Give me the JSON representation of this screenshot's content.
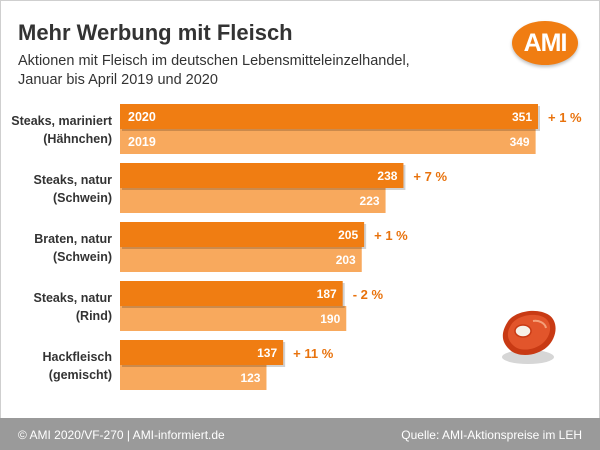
{
  "header": {
    "title": "Mehr Werbung mit Fleisch",
    "subtitle": "Aktionen mit Fleisch im deutschen Lebensmitteleinzelhandel, Januar bis April 2019 und 2020",
    "logo": "AMI"
  },
  "footer": {
    "left": "© AMI 2020/VF-270 | AMI-informiert.de",
    "right": "Quelle: AMI-Aktionspreise im LEH"
  },
  "colors": {
    "series_2020": "#f07d12",
    "series_2019": "#f8a95d",
    "accent_text": "#e8720c"
  },
  "icons": [
    "meat-steak-icon"
  ],
  "chart_data": {
    "type": "bar",
    "orientation": "horizontal",
    "categories": [
      [
        "Steaks, mariniert",
        "(Hähnchen)"
      ],
      [
        "Steaks, natur",
        "(Schwein)"
      ],
      [
        "Braten, natur",
        "(Schwein)"
      ],
      [
        "Steaks, natur",
        "(Rind)"
      ],
      [
        "Hackfleisch",
        "(gemischt)"
      ]
    ],
    "series": [
      {
        "name": "2020",
        "values": [
          351,
          238,
          205,
          187,
          137
        ]
      },
      {
        "name": "2019",
        "values": [
          349,
          223,
          203,
          190,
          123
        ]
      }
    ],
    "changes": [
      "+ 1 %",
      "+ 7 %",
      "+ 1 %",
      "- 2 %",
      "+ 11 %"
    ],
    "xlim": [
      0,
      351
    ],
    "grid": false,
    "legend": "inside-first-bars"
  }
}
